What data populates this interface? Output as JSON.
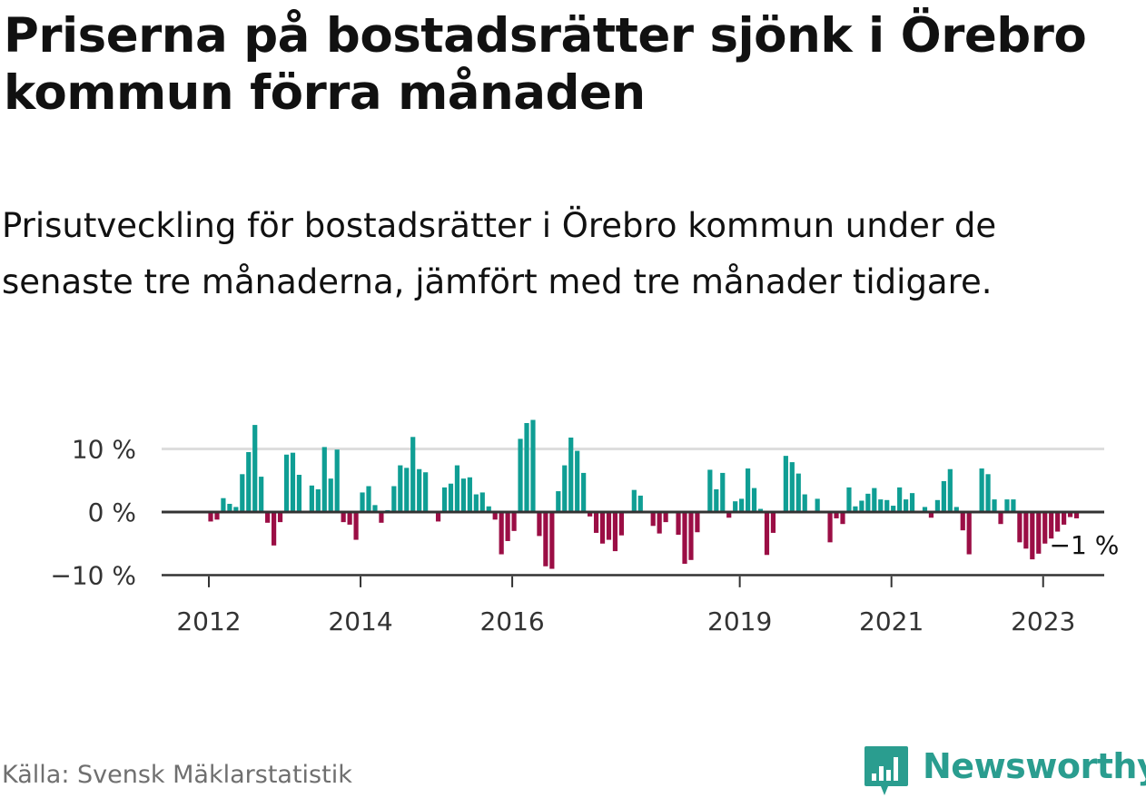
{
  "title": "Priserna på bostadsrätter sjönk i Örebro kommun förra månaden",
  "subtitle": "Prisutveckling för bostadsrätter i Örebro kommun under de senaste tre månaderna, jämfört med tre månader tidigare.",
  "source": "Källa: Svensk Mäklarstatistik",
  "brand": {
    "name": "Newsworthy",
    "icon": "newsworthy-logo-icon",
    "color": "#2a9d8f"
  },
  "colors": {
    "positive": "#0f9e94",
    "negative": "#9b0e45",
    "grid": "#dddddd",
    "axis": "#333333"
  },
  "chart_data": {
    "type": "bar",
    "unit": "%",
    "x_start": "2012-01",
    "x_end": "2023-07",
    "x_ticks": [
      {
        "label": "2012",
        "date": "2012-01"
      },
      {
        "label": "2014",
        "date": "2014-01"
      },
      {
        "label": "2016",
        "date": "2016-01"
      },
      {
        "label": "2019",
        "date": "2019-01"
      },
      {
        "label": "2021",
        "date": "2021-01"
      },
      {
        "label": "2023",
        "date": "2023-01"
      }
    ],
    "y_ticks": [
      {
        "value": 10,
        "label": "10 %"
      },
      {
        "value": 0,
        "label": "0 %"
      },
      {
        "value": -10,
        "label": "−10 %"
      }
    ],
    "ylim": [
      -10.5,
      15
    ],
    "grid": true,
    "annotation": {
      "label": "−1 %",
      "date": "2023-06",
      "value": -1
    },
    "values": [
      -1.5,
      -1.2,
      2.2,
      1.3,
      0.8,
      6.0,
      9.5,
      13.8,
      5.6,
      -1.7,
      -5.3,
      -1.6,
      9.1,
      9.4,
      5.9,
      0.2,
      4.2,
      3.6,
      10.3,
      5.3,
      9.9,
      -1.6,
      -2.0,
      -4.4,
      3.1,
      4.1,
      1.1,
      -1.7,
      0.3,
      4.1,
      7.4,
      7.0,
      11.9,
      6.8,
      6.3,
      0.0,
      -1.5,
      3.9,
      4.5,
      7.4,
      5.3,
      5.5,
      2.8,
      3.1,
      0.9,
      -1.2,
      -6.7,
      -4.6,
      -3.0,
      11.6,
      14.1,
      14.6,
      -3.8,
      -8.6,
      -9.0,
      3.3,
      7.4,
      11.8,
      9.7,
      6.2,
      -0.7,
      -3.3,
      -5.0,
      -4.4,
      -6.2,
      -3.7,
      0.0,
      3.5,
      2.6,
      0.0,
      -2.2,
      -3.4,
      -1.6,
      0.0,
      -3.6,
      -8.2,
      -7.6,
      -3.2,
      0.0,
      6.7,
      3.6,
      6.2,
      -0.9,
      1.7,
      2.1,
      6.9,
      3.8,
      0.5,
      -6.8,
      -3.3,
      0.0,
      8.9,
      7.9,
      6.1,
      2.8,
      0.0,
      2.1,
      0.0,
      -4.8,
      -1.0,
      -1.9,
      3.9,
      0.9,
      1.8,
      2.9,
      3.8,
      2.0,
      1.9,
      1.0,
      3.9,
      2.0,
      3.0,
      0.0,
      0.8,
      -0.9,
      1.9,
      4.9,
      6.8,
      0.8,
      -2.9,
      -6.7,
      0.0,
      6.9,
      6.0,
      2.0,
      -1.9,
      2.0,
      2.0,
      -4.8,
      -5.8,
      -7.5,
      -6.6,
      -5.0,
      -4.2,
      -3.1,
      -2.0,
      -0.8,
      -1.0
    ]
  }
}
